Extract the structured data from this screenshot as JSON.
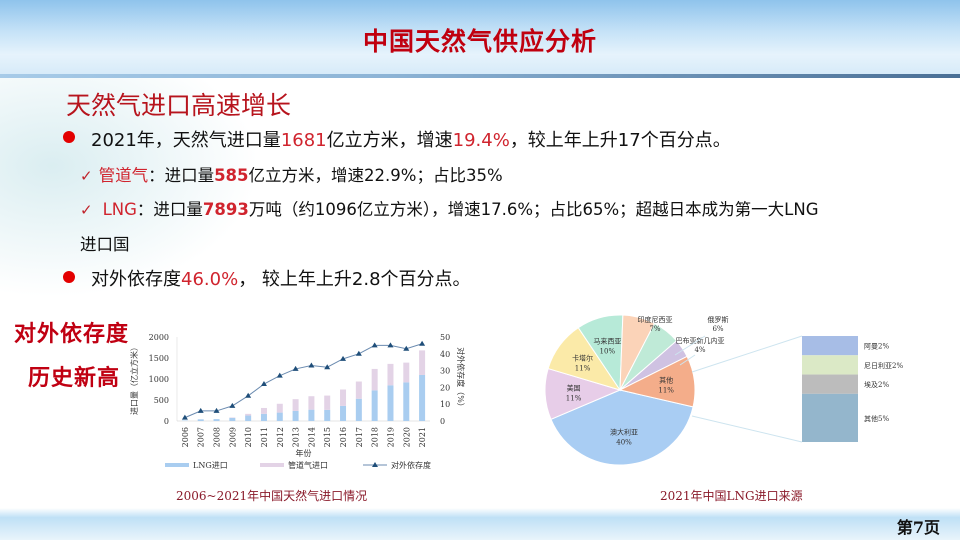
{
  "header": {
    "title": "中国天然气供应分析"
  },
  "section": {
    "subtitle": "天然气进口高速增长"
  },
  "bullets": {
    "b1": {
      "p1": "2021年，天然气进口量",
      "v1": "1681",
      "p2": "亿立方米，增速",
      "v2": "19.4%",
      "p3": "，较上年上升17个百分点。"
    },
    "s1": {
      "label": "管道气",
      "p1": "：进口量",
      "v1": "585",
      "p2": "亿立方米，增速22.9%；占比35%"
    },
    "s2": {
      "label": "LNG",
      "p1": "：进口量",
      "v1": "7893",
      "p2": "万吨（约1096亿立方米），增速17.6%；占比65%；超越日本成为第一大LNG",
      "p3": "进口国"
    },
    "b2": {
      "p1": "对外依存度",
      "v1": "46.0%",
      "p2": "，  较上年上升2.8个百分点。"
    }
  },
  "side_note": {
    "line1": "对外依存度",
    "line2": "历史新高"
  },
  "captions": {
    "left": "2006~2021年中国天然气进口情况",
    "right": "2021年中国LNG进口来源"
  },
  "page_number": "第7页",
  "icons": {
    "bullet": "red-dot-icon",
    "sub_bullet": "checkmark-icon"
  },
  "colors": {
    "title_red": "#c0000f",
    "highlight_red": "#d0242e",
    "lng_bar": "#a9cdf0",
    "pipe_bar": "#e3d3e6",
    "line": "#1f4e79"
  },
  "chart_data": [
    {
      "type": "bar",
      "title": "2006~2021年中国天然气进口情况",
      "xlabel": "年份",
      "ylabel": "进口量（亿立方米）",
      "y2label": "对外依存度（%）",
      "ylim": [
        0,
        2000
      ],
      "y2lim": [
        0,
        50
      ],
      "yticks": [
        0,
        500,
        1000,
        1500,
        2000
      ],
      "y2ticks": [
        0,
        10,
        20,
        30,
        40,
        50
      ],
      "stacked": true,
      "legend_position": "bottom",
      "categories": [
        "2006",
        "2007",
        "2008",
        "2009",
        "2010",
        "2011",
        "2012",
        "2013",
        "2014",
        "2015",
        "2016",
        "2017",
        "2018",
        "2019",
        "2020",
        "2021"
      ],
      "series": [
        {
          "name": "LNG进口",
          "type": "bar",
          "values": [
            10,
            40,
            45,
            75,
            130,
            170,
            200,
            240,
            270,
            265,
            360,
            530,
            730,
            850,
            920,
            1096
          ]
        },
        {
          "name": "管道气进口",
          "type": "bar",
          "values": [
            0,
            0,
            0,
            10,
            40,
            140,
            210,
            280,
            320,
            340,
            390,
            410,
            510,
            510,
            470,
            585
          ]
        },
        {
          "name": "对外依存度",
          "type": "line",
          "axis": "right",
          "values": [
            2,
            6,
            6,
            9,
            15,
            22,
            27,
            31,
            33,
            32,
            37,
            40,
            45,
            45,
            43,
            46
          ]
        }
      ]
    },
    {
      "type": "pie",
      "title": "2021年中国LNG进口来源",
      "categories": [
        "澳大利亚",
        "美国",
        "卡塔尔",
        "马来西亚",
        "印度尼西亚",
        "俄罗斯",
        "巴布亚新几内亚",
        "其他"
      ],
      "values": [
        40,
        11,
        11,
        10,
        7,
        6,
        4,
        11
      ],
      "breakdown_of": "其他",
      "breakdown": {
        "categories": [
          "阿曼",
          "尼日利亚",
          "埃及",
          "其他"
        ],
        "values": [
          2,
          2,
          2,
          5
        ]
      },
      "labels": [
        "澳大利亚 40%",
        "美国 11%",
        "卡塔尔 11%",
        "马来西亚 10%",
        "印度尼西亚 7%",
        "俄罗斯 6%",
        "巴布亚新几内亚 4%",
        "其他 11%"
      ],
      "breakdown_labels": [
        "阿曼2%",
        "尼日利亚2%",
        "埃及2%",
        "其他5%"
      ]
    }
  ]
}
